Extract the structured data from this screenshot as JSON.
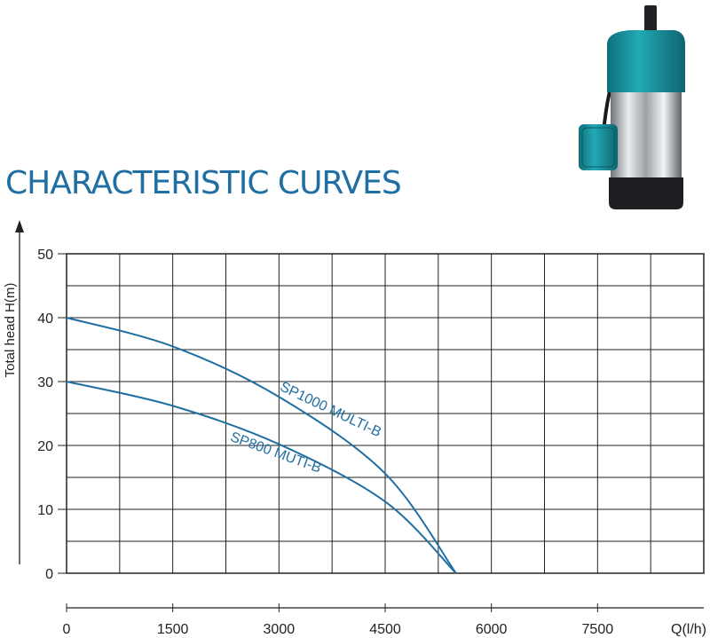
{
  "page": {
    "title": "CHARACTERISTIC CURVES"
  },
  "product_image": {
    "icon": "submersible-pump-icon",
    "body_color": "#1a9aa6",
    "steel_color": "#c8ccd0",
    "base_color": "#1d1f22"
  },
  "colors": {
    "title": "#1f6fa3",
    "curve": "#1f6fa3",
    "grid": "#222222",
    "axis_text": "#222222"
  },
  "chart_data": {
    "type": "line",
    "title": "",
    "xlabel": "Q(l/h)",
    "ylabel": "Total head  H(m)",
    "xlim": [
      0,
      9000
    ],
    "ylim": [
      0,
      50
    ],
    "x_ticks": [
      0,
      1500,
      3000,
      4500,
      6000,
      7500
    ],
    "x_tick_labels": [
      "0",
      "1500",
      "3000",
      "4500",
      "6000",
      "7500"
    ],
    "y_ticks": [
      0,
      10,
      20,
      30,
      40,
      50
    ],
    "y_tick_labels": [
      "0",
      "10",
      "20",
      "30",
      "40",
      "50"
    ],
    "grid": true,
    "series": [
      {
        "name": "SP1000 MULTI-B",
        "x": [
          0,
          1500,
          3000,
          4500,
          5500
        ],
        "y": [
          40,
          35.5,
          27.6,
          15.6,
          0
        ]
      },
      {
        "name": "SP800 MUTI-B",
        "x": [
          0,
          1500,
          3000,
          4500,
          5500
        ],
        "y": [
          30,
          26.2,
          20.2,
          11.2,
          0
        ]
      }
    ]
  }
}
